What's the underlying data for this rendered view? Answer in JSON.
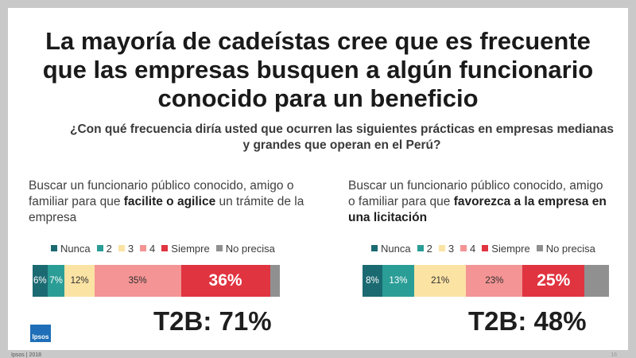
{
  "slide": {
    "title_lines": [
      "La mayoría de cadeístas cree que es frecuente",
      "que las empresas busquen a algún funcionario",
      "conocido para un beneficio"
    ],
    "subtitle_lines": [
      "¿Con qué frecuencia diría usted que ocurren las siguientes prácticas en empresas medianas",
      "y grandes que operan en el Perú?"
    ],
    "logo_text": "Ipsos",
    "footer": "Ipsos | 2018",
    "page_number": "16"
  },
  "legend": [
    {
      "label": "Nunca",
      "color": "#1b6a72"
    },
    {
      "label": "2",
      "color": "#2a9d96"
    },
    {
      "label": "3",
      "color": "#fbe3a4"
    },
    {
      "label": "4",
      "color": "#f49494"
    },
    {
      "label": "Siempre",
      "color": "#e03440"
    },
    {
      "label": "No precisa",
      "color": "#909090"
    }
  ],
  "panels": [
    {
      "question_parts": [
        {
          "text": "Buscar un funcionario público conocido, amigo o familiar para que ",
          "bold": false
        },
        {
          "text": "facilite o agilice",
          "bold": true
        },
        {
          "text": " un trámite de la empresa",
          "bold": false
        }
      ],
      "t2b": "T2B: 71%"
    },
    {
      "question_parts": [
        {
          "text": "Buscar un funcionario público conocido, amigo o familiar para que ",
          "bold": false
        },
        {
          "text": "favorezca a la empresa en una licitación",
          "bold": true
        }
      ],
      "t2b": "T2B: 48%"
    }
  ],
  "chart_data": [
    {
      "type": "bar",
      "stacked": true,
      "orientation": "horizontal",
      "categories": [
        "facilite o agilice un trámite de la empresa"
      ],
      "series": [
        {
          "name": "Nunca",
          "values": [
            6
          ],
          "label": "6%"
        },
        {
          "name": "2",
          "values": [
            7
          ],
          "label": "7%"
        },
        {
          "name": "3",
          "values": [
            12
          ],
          "label": "12%"
        },
        {
          "name": "4",
          "values": [
            35
          ],
          "label": "35%"
        },
        {
          "name": "Siempre",
          "values": [
            36
          ],
          "label": "36%"
        },
        {
          "name": "No precisa",
          "values": [
            4
          ],
          "label": ""
        }
      ],
      "annotation": "T2B: 71%",
      "xlim": [
        0,
        100
      ],
      "legend_position": "top"
    },
    {
      "type": "bar",
      "stacked": true,
      "orientation": "horizontal",
      "categories": [
        "favorezca a la empresa en una licitación"
      ],
      "series": [
        {
          "name": "Nunca",
          "values": [
            8
          ],
          "label": "8%"
        },
        {
          "name": "2",
          "values": [
            13
          ],
          "label": "13%"
        },
        {
          "name": "3",
          "values": [
            21
          ],
          "label": "21%"
        },
        {
          "name": "4",
          "values": [
            23
          ],
          "label": "23%"
        },
        {
          "name": "Siempre",
          "values": [
            25
          ],
          "label": "25%"
        },
        {
          "name": "No precisa",
          "values": [
            10
          ],
          "label": ""
        }
      ],
      "annotation": "T2B: 48%",
      "xlim": [
        0,
        100
      ],
      "legend_position": "top"
    }
  ]
}
